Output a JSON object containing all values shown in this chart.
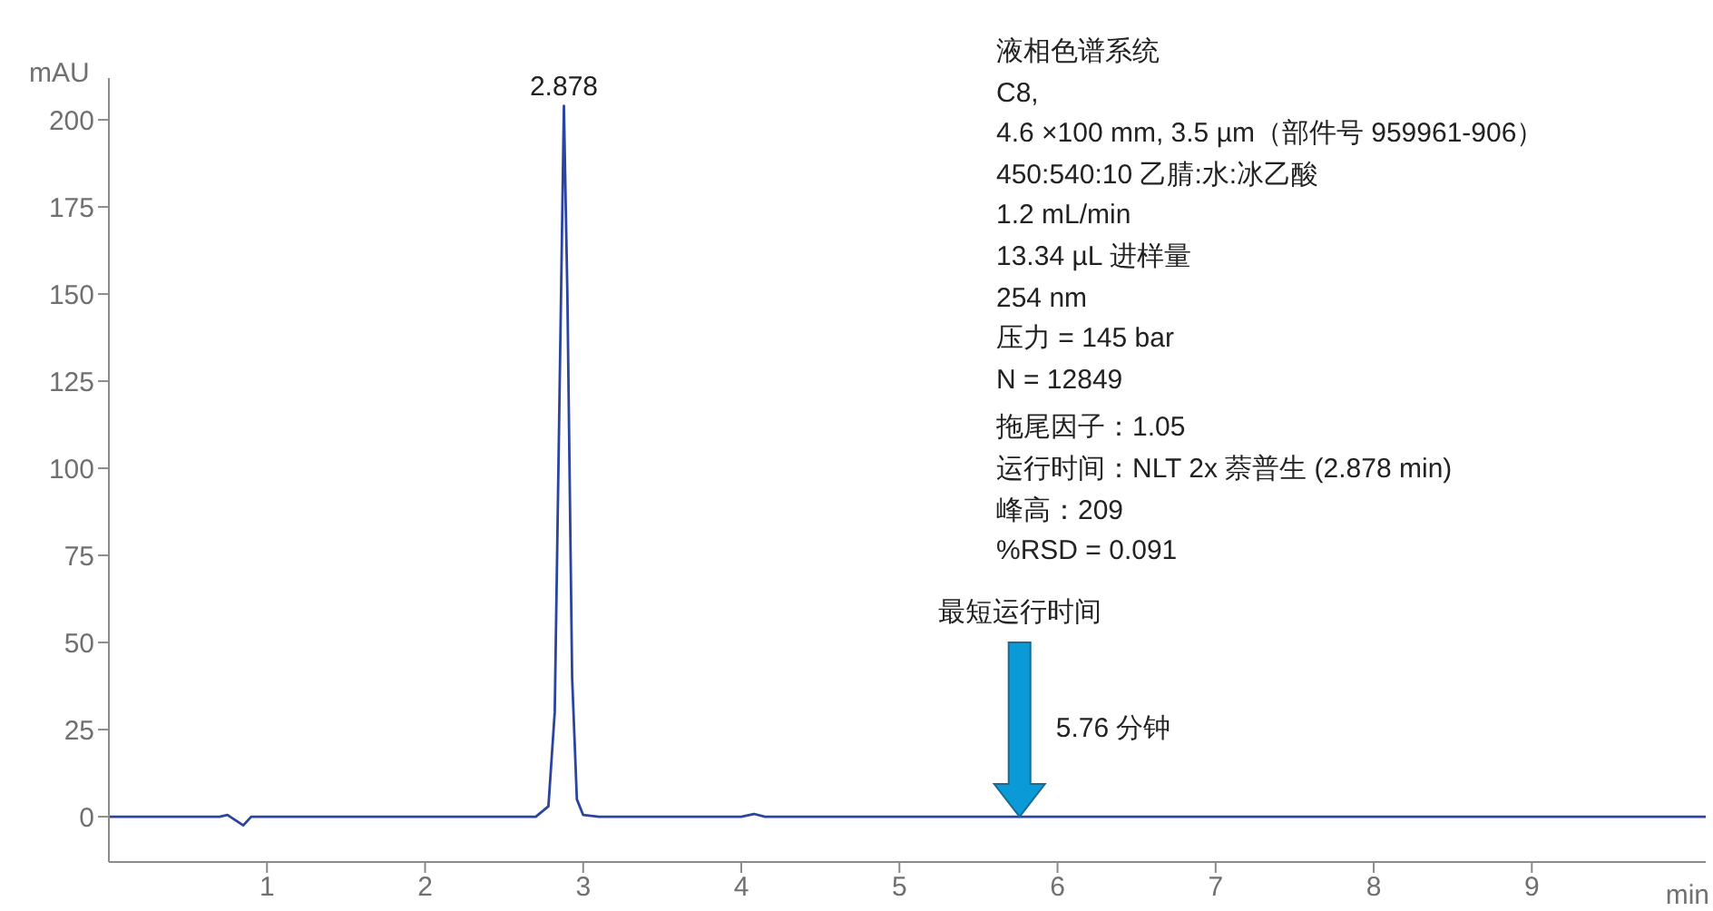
{
  "chart_data": {
    "type": "line",
    "xlabel": "min",
    "ylabel": "mAU",
    "x": [
      0,
      0.7,
      0.75,
      0.8,
      0.85,
      0.9,
      2.7,
      2.78,
      2.82,
      2.85,
      2.878,
      2.9,
      2.93,
      2.96,
      3.0,
      3.1,
      4.0,
      4.08,
      4.15,
      10.1
    ],
    "series": [
      {
        "color": "#2b44a0",
        "values": [
          0,
          0,
          0.5,
          -1,
          -2.5,
          0,
          0,
          3,
          30,
          120,
          204,
          150,
          40,
          5,
          0.5,
          0,
          0,
          0.8,
          0,
          0
        ]
      }
    ],
    "xlim": [
      0,
      10.1
    ],
    "xticks": [
      1,
      2,
      3,
      4,
      5,
      6,
      7,
      8,
      9
    ],
    "ylim": [
      -13,
      212
    ],
    "yticks": [
      0,
      25,
      50,
      75,
      100,
      125,
      150,
      175,
      200
    ],
    "grid": false,
    "legend": false,
    "marker": "none",
    "line_style": "solid",
    "annotations": [
      {
        "text": "2.878",
        "x": 2.878,
        "y": 204
      },
      {
        "text": "5.76 分钟",
        "x": 5.76,
        "y": 0
      },
      "最短运行时间",
      "液相色谱系统",
      "C8,",
      "4.6 ×100 mm, 3.5 µm（部件号 959961-906）",
      "450:540:10 乙腈:水:冰乙酸",
      "1.2 mL/min",
      "13.34 µL 进样量",
      "254 nm",
      "压力 = 145 bar",
      "N = 12849",
      "拖尾因子：1.05",
      "运行时间：NLT 2x 萘普生 (2.878 min)",
      "峰高：209",
      "%RSD = 0.091"
    ]
  }
}
